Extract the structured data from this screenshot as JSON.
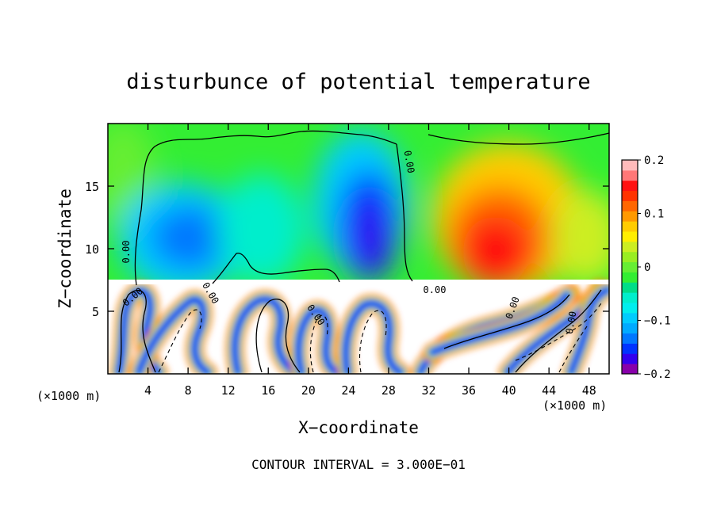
{
  "chart_data": {
    "type": "heatmap",
    "title": "disturbunce of potential temperature",
    "xlabel": "X−coordinate",
    "ylabel": "Z−coordinate",
    "x_unit_left": "(×1000 m)",
    "x_unit_right": "(×1000 m)",
    "xlim": [
      0,
      50
    ],
    "ylim": [
      0,
      20
    ],
    "x_ticks": [
      4,
      8,
      12,
      16,
      20,
      24,
      28,
      32,
      36,
      40,
      44,
      48
    ],
    "y_ticks": [
      5,
      10,
      15
    ],
    "colorbar": {
      "vmin": -0.2,
      "vmax": 0.2,
      "tick_values": [
        0.2,
        0.1,
        0,
        -0.1,
        -0.2
      ],
      "tick_labels": [
        "0.2",
        "0.1",
        "0",
        "−0.1",
        "−0.2"
      ],
      "colors": [
        "#8800aa",
        "#3300ee",
        "#0033ff",
        "#0077ff",
        "#00aaff",
        "#00ccff",
        "#00eeee",
        "#00eecc",
        "#00dd88",
        "#33ee33",
        "#66ee33",
        "#99ee22",
        "#ccee22",
        "#ffee00",
        "#ffcc00",
        "#ff9900",
        "#ff6600",
        "#ff3300",
        "#ff1111",
        "#ff7777",
        "#ffbbbb"
      ]
    },
    "contour_labels": [
      "0.00",
      "0.00",
      "0.00",
      "0.00",
      "0.00",
      "0.00",
      "0.00",
      "0.00"
    ],
    "footer": "CONTOUR INTERVAL = 3.000E−01",
    "upper_layer_anomalies": [
      {
        "x": 9,
        "z": 11.5,
        "value": -0.1
      },
      {
        "x": 20,
        "z": 12,
        "value": -0.08
      },
      {
        "x": 27,
        "z": 12,
        "value": -0.2
      },
      {
        "x": 38,
        "z": 11,
        "value": 0.15
      },
      {
        "x": 44,
        "z": 12,
        "value": 0.06
      }
    ]
  }
}
